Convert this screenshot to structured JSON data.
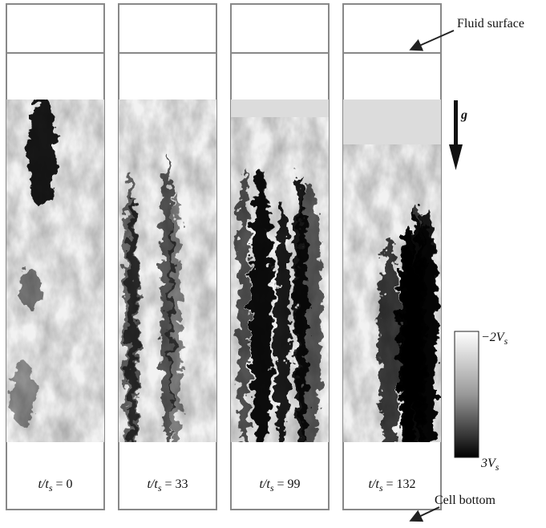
{
  "annotations": {
    "fluid_surface": "Fluid surface",
    "cell_bottom": "Cell bottom",
    "gravity": "g"
  },
  "panels": [
    {
      "label": {
        "ratio": "t/t",
        "subscript": "s",
        "value": " = 0"
      }
    },
    {
      "label": {
        "ratio": "t/t",
        "subscript": "s",
        "value": " = 33"
      }
    },
    {
      "label": {
        "ratio": "t/t",
        "subscript": "s",
        "value": " = 99"
      }
    },
    {
      "label": {
        "ratio": "t/t",
        "subscript": "s",
        "value": " = 132"
      }
    }
  ],
  "colorbar": {
    "top": {
      "text": "−2V",
      "subscript": "s"
    },
    "bottom": {
      "text": "3V",
      "subscript": "s"
    }
  }
}
